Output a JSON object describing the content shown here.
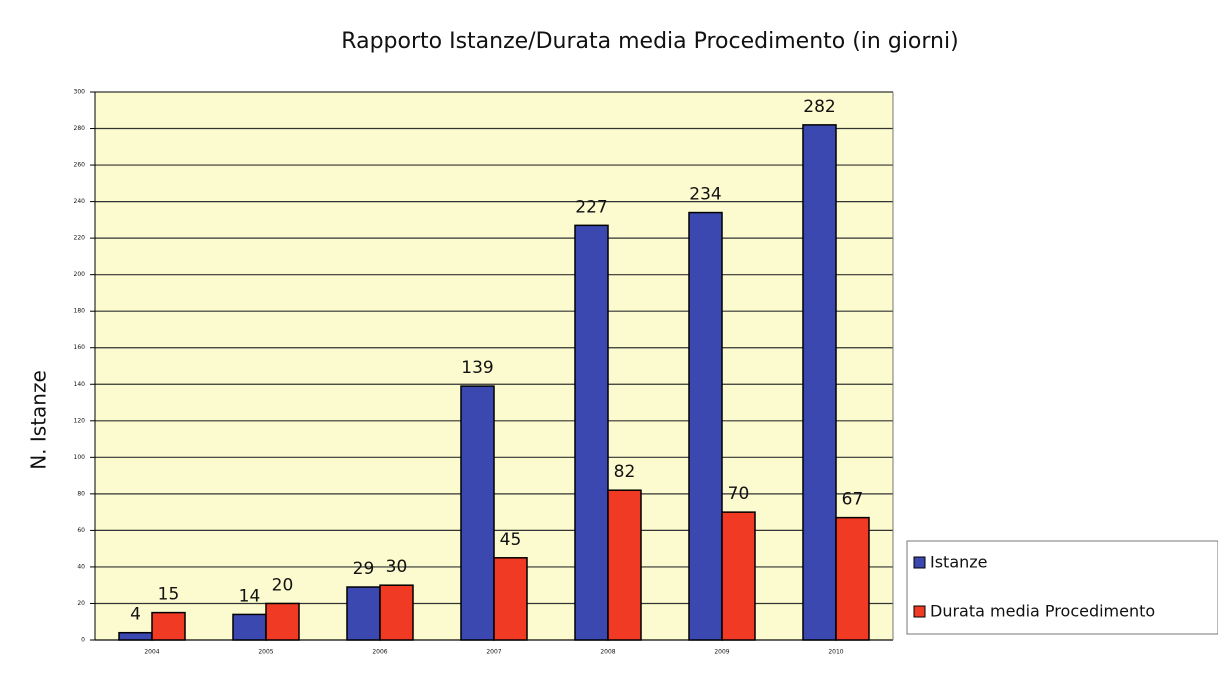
{
  "chart_data": {
    "type": "bar",
    "title": "Rapporto Istanze/Durata media Procedimento (in giorni)",
    "y_label": "N. Istanze",
    "categories": [
      "2004",
      "2005",
      "2006",
      "2007",
      "2008",
      "2009",
      "2010"
    ],
    "series": [
      {
        "name": "Istanze",
        "color": "#3b48b0",
        "values": [
          4,
          14,
          29,
          139,
          227,
          234,
          282
        ]
      },
      {
        "name": "Durata media Procedimento",
        "color": "#f03a24",
        "values": [
          15,
          20,
          30,
          45,
          82,
          70,
          67
        ]
      }
    ],
    "ylim": [
      0,
      300
    ],
    "yticks": [
      0,
      20,
      40,
      60,
      80,
      100,
      120,
      140,
      160,
      180,
      200,
      220,
      240,
      260,
      280,
      300
    ],
    "grid": true,
    "legend": "right"
  }
}
